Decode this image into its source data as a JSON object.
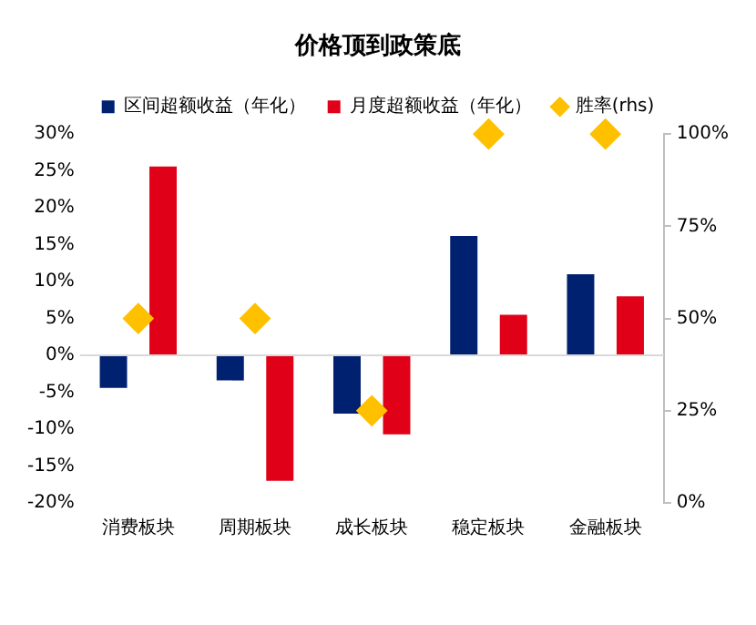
{
  "chart_data": {
    "type": "bar",
    "title": "价格顶到政策底",
    "categories": [
      "消费板块",
      "周期板块",
      "成长板块",
      "稳定板块",
      "金融板块"
    ],
    "series": [
      {
        "name": "区间超额收益（年化）",
        "color": "#002070",
        "values": [
          -4.4,
          -3.4,
          -7.9,
          16.2,
          11
        ]
      },
      {
        "name": "月度超额收益（年化）",
        "color": "#e00018",
        "values": [
          25.6,
          -17,
          -10.7,
          5.5,
          8
        ]
      },
      {
        "name": "胜率(rhs)",
        "type": "scatter",
        "color": "#ffc000",
        "axis": "y2",
        "values": [
          50,
          50,
          25,
          100,
          100
        ]
      }
    ],
    "ylim": [
      -20,
      30
    ],
    "yticks": [
      {
        "value": -20,
        "label": "-20%"
      },
      {
        "value": -15,
        "label": "-15%"
      },
      {
        "value": -10,
        "label": "-10%"
      },
      {
        "value": -5,
        "label": "-5%"
      },
      {
        "value": 0,
        "label": "0%"
      },
      {
        "value": 5,
        "label": "5%"
      },
      {
        "value": 10,
        "label": "10%"
      },
      {
        "value": 15,
        "label": "15%"
      },
      {
        "value": 20,
        "label": "20%"
      },
      {
        "value": 25,
        "label": "25%"
      },
      {
        "value": 30,
        "label": "30%"
      }
    ],
    "y2lim": [
      0,
      100
    ],
    "y2ticks": [
      {
        "value": 0,
        "label": "0%"
      },
      {
        "value": 25,
        "label": "25%"
      },
      {
        "value": 50,
        "label": "50%"
      },
      {
        "value": 75,
        "label": "75%"
      },
      {
        "value": 100,
        "label": "100%"
      }
    ],
    "marker": "diamond",
    "legend": "top"
  }
}
